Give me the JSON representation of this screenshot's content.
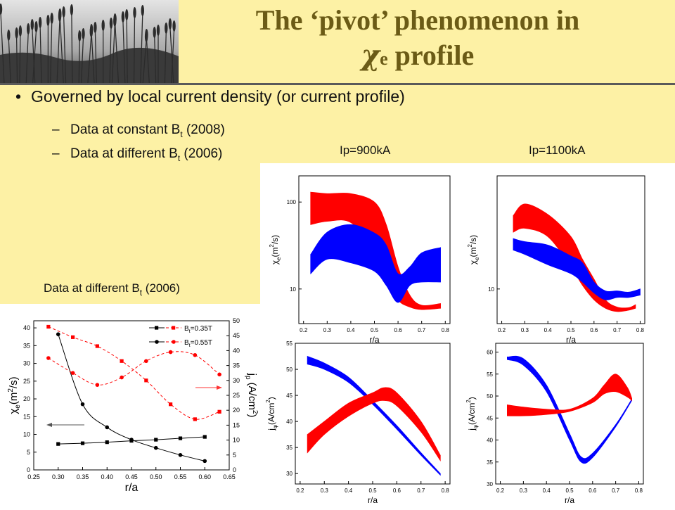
{
  "slide": {
    "title_line1": "The ‘pivot’ phenomenon in",
    "title_chi": "χ",
    "title_chi_sub": "e",
    "title_line2_rest": " profile",
    "bullet_main": "Governed by local current density (or current profile)",
    "sub_bullets": [
      {
        "text": "Data at constant B",
        "sub": "t",
        "rest": " (2008)"
      },
      {
        "text": "Data at different B",
        "sub": "t",
        "rest": " (2006)"
      }
    ],
    "column_labels": [
      "Ip=900kA",
      "Ip=1100kA"
    ],
    "left_caption": {
      "text": "Data at different B",
      "sub": "t",
      "rest": " (2006)"
    },
    "colors": {
      "background": "#fdf1a5",
      "title": "#6b5b16",
      "red": "#ff0000",
      "blue": "#0000ff"
    }
  },
  "chart_data": [
    {
      "id": "chi_vs_ra_2006",
      "type": "line",
      "xlabel": "r/a",
      "ylabel": "χe(m2/s)",
      "y2label": "jp (A/cm2)",
      "xlim": [
        0.25,
        0.65
      ],
      "ylim": [
        0,
        42
      ],
      "y2lim": [
        0,
        50
      ],
      "xticks": [
        "0.25",
        "0.30",
        "0.35",
        "0.40",
        "0.45",
        "0.50",
        "0.55",
        "0.60",
        "0.65"
      ],
      "yticks": [
        "0",
        "5",
        "10",
        "15",
        "20",
        "25",
        "30",
        "35",
        "40"
      ],
      "y2ticks": [
        "0",
        "5",
        "10",
        "15",
        "20",
        "25",
        "30",
        "35",
        "40",
        "45",
        "50"
      ],
      "series": [
        {
          "name": "Bt=0.35T",
          "axis": "left",
          "marker": "square",
          "color": "#000000",
          "x": [
            0.3,
            0.35,
            0.4,
            0.45,
            0.5,
            0.55,
            0.6
          ],
          "y": [
            7.3,
            7.5,
            7.8,
            8.2,
            8.5,
            8.9,
            9.3
          ]
        },
        {
          "name": "Bt=0.55T",
          "axis": "left",
          "marker": "circle",
          "color": "#000000",
          "x": [
            0.3,
            0.35,
            0.4,
            0.45,
            0.5,
            0.55,
            0.6
          ],
          "y": [
            38.2,
            18.5,
            12,
            8.5,
            6.2,
            4.2,
            2.5
          ]
        },
        {
          "name": "Bt=0.35T",
          "axis": "right",
          "marker": "square",
          "color": "#ff0000",
          "x": [
            0.28,
            0.33,
            0.38,
            0.43,
            0.48,
            0.53,
            0.58,
            0.63
          ],
          "y": [
            48,
            44.5,
            41.5,
            36.5,
            30,
            22,
            17,
            19.5
          ]
        },
        {
          "name": "Bt=0.55T",
          "axis": "right",
          "marker": "circle",
          "color": "#ff0000",
          "x": [
            0.28,
            0.33,
            0.38,
            0.43,
            0.48,
            0.53,
            0.58,
            0.63
          ],
          "y": [
            37.5,
            32.5,
            28.5,
            31,
            36.5,
            39.5,
            38.5,
            32
          ]
        }
      ],
      "legend": "top-right"
    },
    {
      "id": "chi_900",
      "type": "area",
      "xlabel": "r/a",
      "ylabel": "χe(m2/s)",
      "yscale": "log",
      "xlim": [
        0.18,
        0.82
      ],
      "ylim": [
        4,
        200
      ],
      "xticks": [
        "0.2",
        "0.3",
        "0.4",
        "0.5",
        "0.6",
        "0.7",
        "0.8"
      ],
      "yticks": [
        "10",
        "100"
      ],
      "bands": [
        {
          "color": "#ff0000",
          "x": [
            0.23,
            0.3,
            0.4,
            0.5,
            0.55,
            0.6,
            0.65,
            0.7,
            0.78
          ],
          "lower": [
            55,
            60,
            58,
            28,
            14,
            7.5,
            6.2,
            5.8,
            6.0
          ],
          "upper": [
            130,
            125,
            125,
            100,
            55,
            18,
            8.5,
            6.5,
            6.8
          ]
        },
        {
          "color": "#0000ff",
          "x": [
            0.23,
            0.3,
            0.4,
            0.5,
            0.55,
            0.6,
            0.65,
            0.7,
            0.78
          ],
          "lower": [
            15,
            22,
            20,
            16,
            11,
            7,
            11,
            12,
            12
          ],
          "upper": [
            25,
            45,
            55,
            44,
            32,
            15,
            18,
            26,
            30
          ]
        }
      ]
    },
    {
      "id": "chi_1100",
      "type": "area",
      "xlabel": "r/a",
      "ylabel": "χe(m2/s)",
      "yscale": "log",
      "xlim": [
        0.18,
        0.82
      ],
      "ylim": [
        4,
        200
      ],
      "xticks": [
        "0.2",
        "0.3",
        "0.4",
        "0.5",
        "0.6",
        "0.7",
        "0.8"
      ],
      "yticks": [
        "10"
      ],
      "bands": [
        {
          "color": "#ff0000",
          "x": [
            0.25,
            0.3,
            0.4,
            0.5,
            0.55,
            0.6,
            0.65,
            0.7,
            0.75,
            0.78
          ],
          "lower": [
            45,
            50,
            40,
            18,
            11,
            7.5,
            6.0,
            5.5,
            5.7,
            6.0
          ],
          "upper": [
            70,
            95,
            72,
            40,
            22,
            13,
            7.5,
            6.2,
            6.1,
            6.6
          ]
        },
        {
          "color": "#0000ff",
          "x": [
            0.25,
            0.3,
            0.4,
            0.5,
            0.55,
            0.6,
            0.65,
            0.7,
            0.75,
            0.8
          ],
          "lower": [
            28,
            25,
            19,
            15,
            12,
            9,
            7.5,
            8,
            8,
            8.5
          ],
          "upper": [
            38,
            35,
            32,
            24,
            20,
            12,
            9.5,
            9.5,
            9.2,
            10
          ]
        }
      ]
    },
    {
      "id": "j_900",
      "type": "area",
      "xlabel": "r/a",
      "ylabel": "jφ(A/cm2)",
      "xlim": [
        0.18,
        0.82
      ],
      "ylim": [
        28,
        55
      ],
      "xticks": [
        "0.2",
        "0.3",
        "0.4",
        "0.5",
        "0.6",
        "0.7",
        "0.8"
      ],
      "yticks": [
        "30",
        "35",
        "40",
        "45",
        "50",
        "55"
      ],
      "bands": [
        {
          "color": "#0000ff",
          "x": [
            0.23,
            0.3,
            0.4,
            0.5,
            0.6,
            0.7,
            0.78
          ],
          "lower": [
            51,
            50,
            47.5,
            43.3,
            38.5,
            33.5,
            29.7
          ],
          "upper": [
            52.5,
            51.2,
            48.5,
            44,
            39.2,
            34,
            30
          ]
        },
        {
          "color": "#ff0000",
          "x": [
            0.23,
            0.3,
            0.4,
            0.5,
            0.55,
            0.6,
            0.7,
            0.78
          ],
          "lower": [
            34,
            37.5,
            41,
            43.5,
            44,
            43,
            38,
            32.5
          ],
          "upper": [
            37.5,
            40,
            43.5,
            45.5,
            46.5,
            45.5,
            40,
            33.5
          ]
        }
      ]
    },
    {
      "id": "j_1100",
      "type": "area",
      "xlabel": "r/a",
      "ylabel": "jφ(A/cm2)",
      "xlim": [
        0.18,
        0.82
      ],
      "ylim": [
        30,
        62
      ],
      "xticks": [
        "0.2",
        "0.3",
        "0.4",
        "0.5",
        "0.6",
        "0.7",
        "0.8"
      ],
      "yticks": [
        "30",
        "35",
        "40",
        "45",
        "50",
        "55",
        "60"
      ],
      "bands": [
        {
          "color": "#0000ff",
          "x": [
            0.23,
            0.3,
            0.4,
            0.5,
            0.55,
            0.6,
            0.7,
            0.77
          ],
          "lower": [
            58.3,
            57,
            51,
            40,
            35,
            36,
            43,
            49
          ],
          "upper": [
            58.9,
            58.5,
            52.5,
            41.5,
            36.2,
            37,
            43.5,
            49.3
          ]
        },
        {
          "color": "#ff0000",
          "x": [
            0.23,
            0.3,
            0.4,
            0.5,
            0.6,
            0.65,
            0.7,
            0.75,
            0.77
          ],
          "lower": [
            45.5,
            45.5,
            45.8,
            46.5,
            48.5,
            50.5,
            51,
            49.8,
            49
          ],
          "upper": [
            48,
            47.5,
            47,
            47,
            49.5,
            52.5,
            55,
            52,
            49.5
          ]
        }
      ]
    }
  ]
}
